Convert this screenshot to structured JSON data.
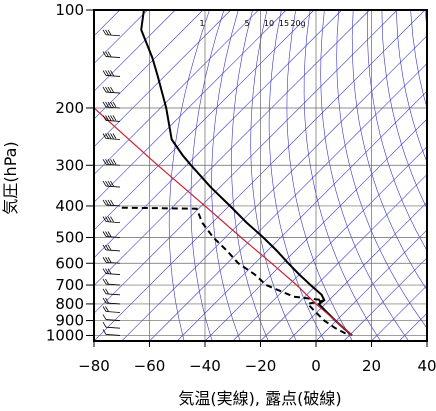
{
  "chart_data": {
    "type": "line",
    "title": "",
    "xlabel": "気温(実線), 露点(破線)",
    "ylabel": "気圧(hPa)",
    "xlim": [
      -80,
      40
    ],
    "ylim": [
      1040,
      100
    ],
    "y_scale": "log",
    "x_ticks": [
      -80,
      -60,
      -40,
      -20,
      0,
      20,
      40
    ],
    "y_ticks": [
      100,
      200,
      300,
      400,
      500,
      600,
      700,
      800,
      900,
      1000
    ],
    "mixing_ratio_labels": [
      "1",
      "5",
      "10",
      "15",
      "20g"
    ],
    "grid": true,
    "series": [
      {
        "style": "solid",
        "color": "#000000",
        "points": [
          {
            "p": 100,
            "t": -62
          },
          {
            "p": 115,
            "t": -63
          },
          {
            "p": 140,
            "t": -59
          },
          {
            "p": 160,
            "t": -57
          },
          {
            "p": 200,
            "t": -54
          },
          {
            "p": 250,
            "t": -52
          },
          {
            "p": 280,
            "t": -48
          },
          {
            "p": 300,
            "t": -45
          },
          {
            "p": 350,
            "t": -38
          },
          {
            "p": 400,
            "t": -31
          },
          {
            "p": 450,
            "t": -25
          },
          {
            "p": 500,
            "t": -19
          },
          {
            "p": 550,
            "t": -14
          },
          {
            "p": 600,
            "t": -10
          },
          {
            "p": 650,
            "t": -6
          },
          {
            "p": 700,
            "t": -2
          },
          {
            "p": 750,
            "t": 2
          },
          {
            "p": 780,
            "t": 3
          },
          {
            "p": 800,
            "t": 1
          },
          {
            "p": 850,
            "t": 4
          },
          {
            "p": 900,
            "t": 7
          },
          {
            "p": 950,
            "t": 10
          },
          {
            "p": 1000,
            "t": 13
          }
        ]
      },
      {
        "style": "dashed",
        "color": "#000000",
        "points": [
          {
            "p": 405,
            "t": -70
          },
          {
            "p": 408,
            "t": -43
          },
          {
            "p": 450,
            "t": -41
          },
          {
            "p": 500,
            "t": -37
          },
          {
            "p": 550,
            "t": -32
          },
          {
            "p": 600,
            "t": -28
          },
          {
            "p": 650,
            "t": -22
          },
          {
            "p": 700,
            "t": -18
          },
          {
            "p": 760,
            "t": -8
          },
          {
            "p": 780,
            "t": 3
          },
          {
            "p": 800,
            "t": -3
          },
          {
            "p": 850,
            "t": 0
          },
          {
            "p": 900,
            "t": 3
          },
          {
            "p": 950,
            "t": 7
          },
          {
            "p": 1000,
            "t": 12
          }
        ]
      },
      {
        "style": "solid",
        "color": "#cc2233",
        "points": [
          {
            "p": 200,
            "t": -80
          },
          {
            "p": 300,
            "t": -57
          },
          {
            "p": 400,
            "t": -40
          },
          {
            "p": 500,
            "t": -27
          },
          {
            "p": 600,
            "t": -16
          },
          {
            "p": 700,
            "t": -7
          },
          {
            "p": 800,
            "t": 0
          },
          {
            "p": 900,
            "t": 7
          },
          {
            "p": 1000,
            "t": 13
          }
        ]
      }
    ],
    "wind_barbs": {
      "pressures": [
        100,
        120,
        140,
        160,
        180,
        200,
        220,
        250,
        300,
        350,
        400,
        450,
        500,
        550,
        600,
        650,
        700,
        750,
        800,
        850,
        900,
        950,
        1000
      ],
      "speeds": [
        20,
        25,
        30,
        35,
        40,
        45,
        50,
        50,
        45,
        40,
        40,
        35,
        30,
        30,
        25,
        25,
        20,
        20,
        15,
        15,
        10,
        10,
        10
      ]
    },
    "colors": {
      "grid": "#3333cc",
      "frame": "#000000",
      "ref_grid": "#666666"
    }
  }
}
